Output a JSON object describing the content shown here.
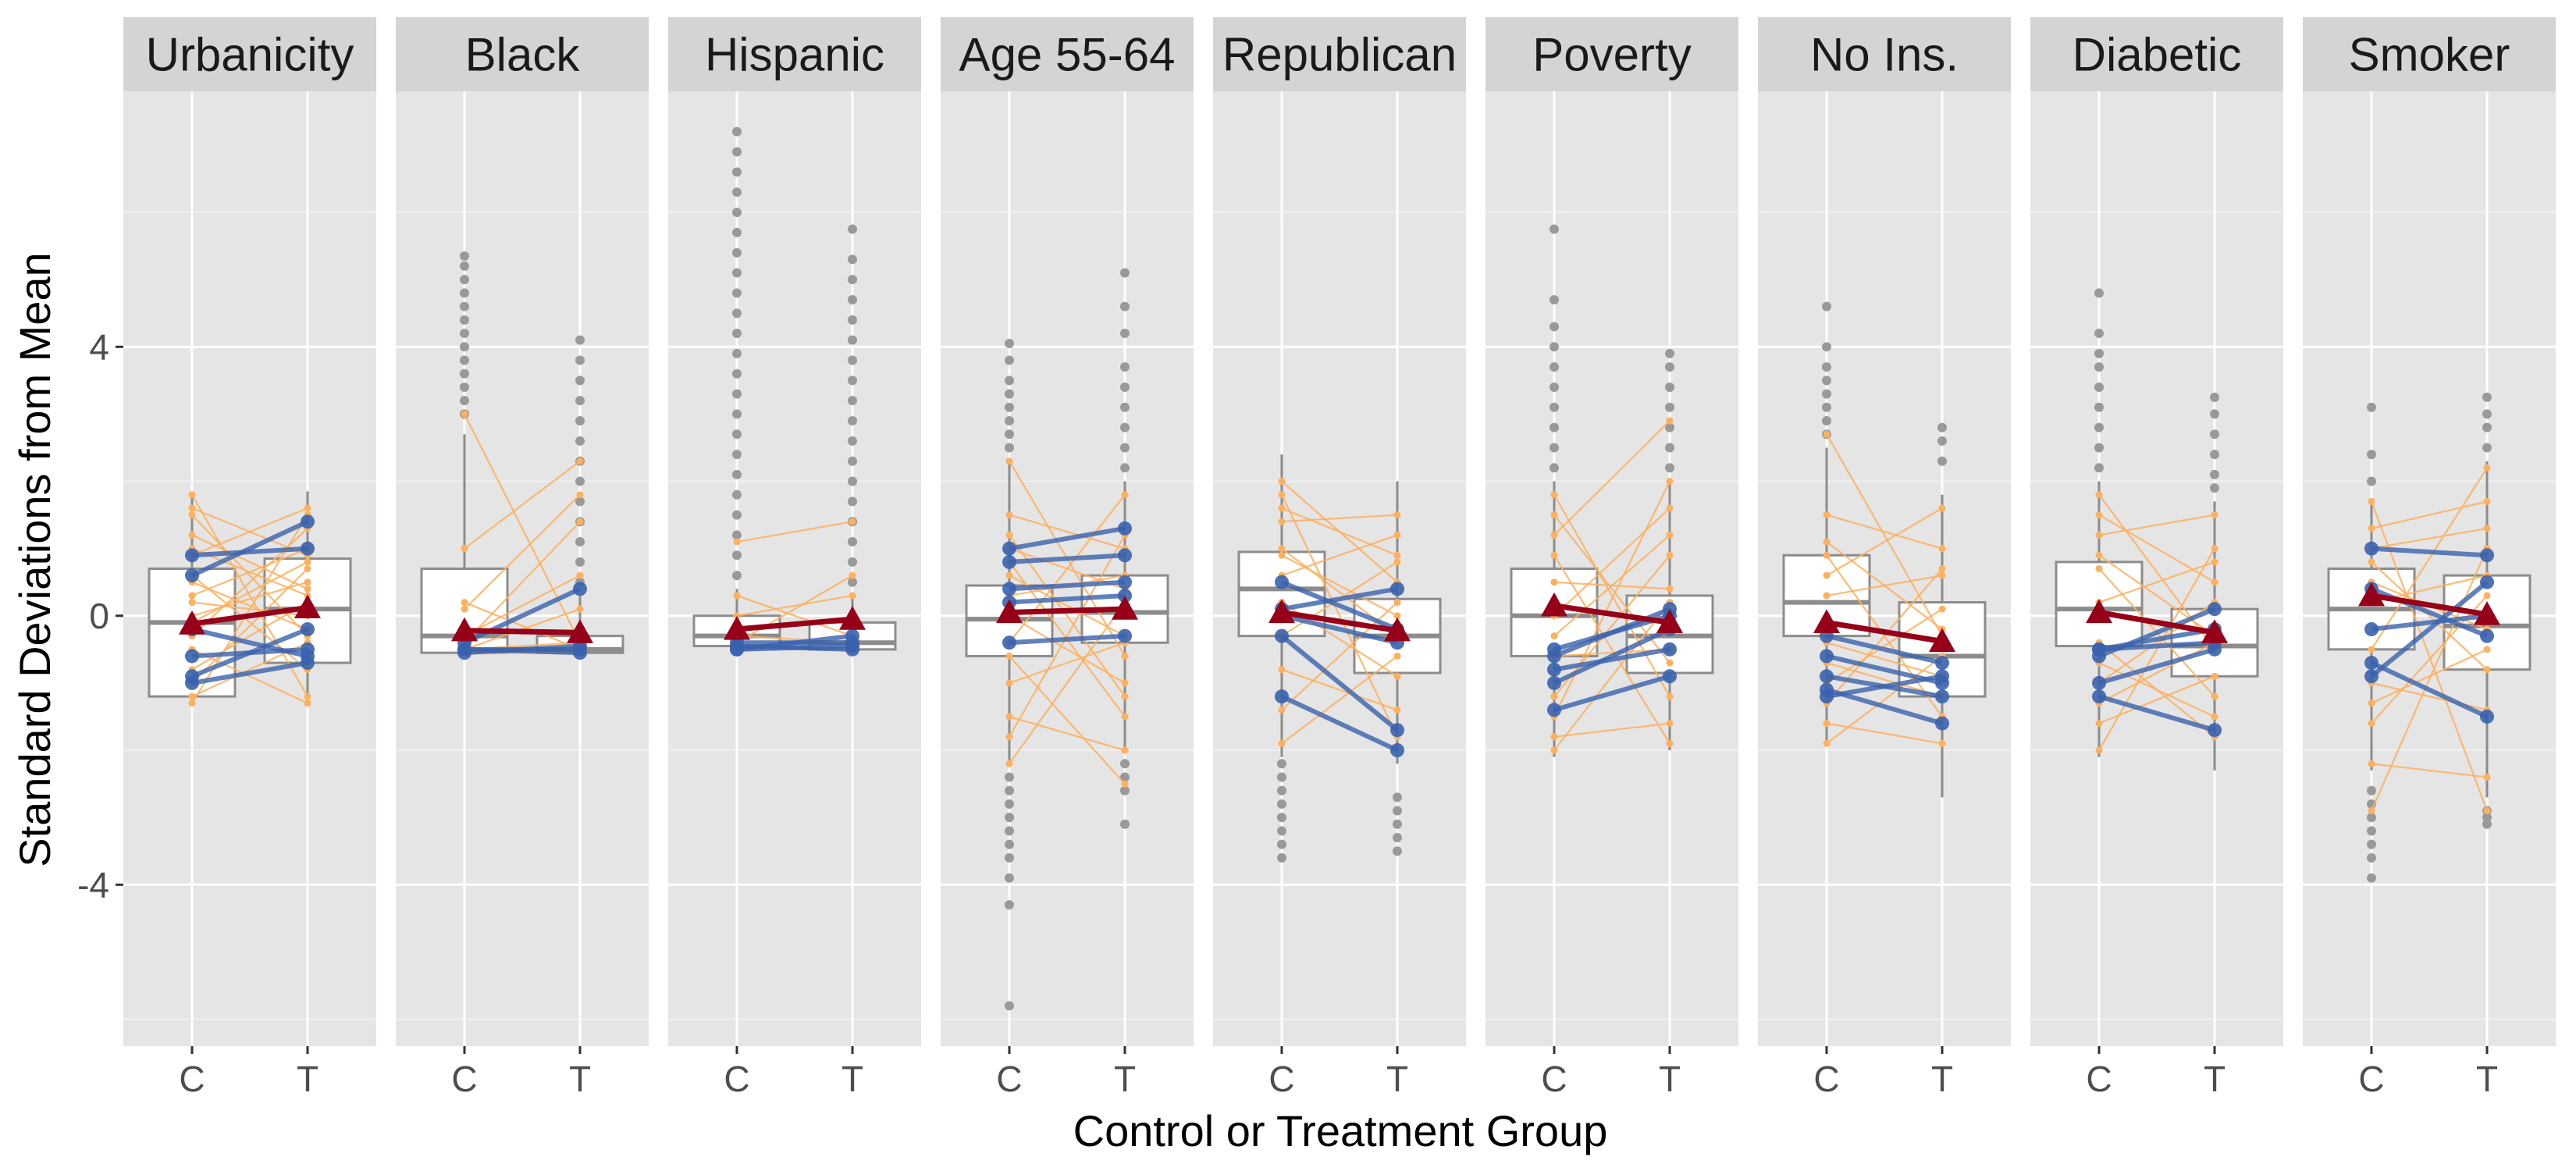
{
  "chart_data": {
    "type": "boxplot-faceted",
    "xlabel": "Control or Treatment Group",
    "ylabel": "Standard Deviations from Mean",
    "groups": [
      "C",
      "T"
    ],
    "yticks": [
      -4,
      0,
      4
    ],
    "ylim": [
      -6.4,
      7.8
    ],
    "colors": {
      "panel_bg": "#e5e5e5",
      "strip_bg": "#d4d4d4",
      "grid": "#ffffff",
      "box_line": "#8c8c8c",
      "outlier": "#999999",
      "pair_line": "#fdb05e",
      "highlight": "#3a62ad",
      "mean": "#960018"
    },
    "facets": [
      {
        "name": "Urbanicity",
        "boxes": [
          {
            "q1": -1.2,
            "median": -0.1,
            "q3": 0.7,
            "wlo": -1.35,
            "whi": 1.8,
            "outliers": []
          },
          {
            "q1": -0.7,
            "median": 0.1,
            "q3": 0.85,
            "wlo": -1.35,
            "whi": 1.85,
            "outliers": []
          }
        ],
        "means": [
          -0.12,
          0.12
        ],
        "pairs": [
          [
            1.8,
            -1.2
          ],
          [
            1.6,
            0.9
          ],
          [
            1.5,
            -0.3
          ],
          [
            1.2,
            0.4
          ],
          [
            0.9,
            1.6
          ],
          [
            0.6,
            -0.8
          ],
          [
            0.3,
            1.0
          ],
          [
            0.0,
            0.5
          ],
          [
            -0.3,
            1.3
          ],
          [
            -0.5,
            -1.3
          ],
          [
            -0.8,
            0.2
          ],
          [
            -1.0,
            0.7
          ],
          [
            -1.2,
            -0.4
          ],
          [
            -1.3,
            1.5
          ],
          [
            0.2,
            0.0
          ],
          [
            1.0,
            0.3
          ],
          [
            -0.1,
            0.8
          ],
          [
            0.5,
            -0.2
          ]
        ],
        "highlight_pairs": [
          [
            0.9,
            1.0
          ],
          [
            0.6,
            1.4
          ],
          [
            -0.6,
            -0.5
          ],
          [
            -0.9,
            -0.2
          ],
          [
            -1.0,
            -0.7
          ],
          [
            -0.2,
            -0.6
          ]
        ]
      },
      {
        "name": "Black",
        "boxes": [
          {
            "q1": -0.55,
            "median": -0.3,
            "q3": 0.7,
            "wlo": -0.6,
            "whi": 2.7,
            "outliers": [
              3.0,
              3.2,
              3.4,
              3.6,
              3.8,
              4.0,
              4.2,
              4.4,
              4.6,
              4.8,
              5.0,
              5.2,
              5.35
            ]
          },
          {
            "q1": -0.55,
            "median": -0.5,
            "q3": -0.3,
            "wlo": -0.6,
            "whi": 0.3,
            "outliers": [
              0.5,
              0.8,
              1.1,
              1.4,
              1.7,
              2.0,
              2.3,
              2.6,
              2.9,
              3.2,
              3.5,
              3.8,
              4.1
            ]
          }
        ],
        "means": [
          -0.22,
          -0.25
        ],
        "pairs": [
          [
            3.0,
            -0.4
          ],
          [
            1.0,
            2.3
          ],
          [
            0.2,
            -0.5
          ],
          [
            -0.4,
            1.4
          ],
          [
            -0.5,
            0.1
          ],
          [
            -0.5,
            -0.4
          ],
          [
            -0.3,
            0.6
          ],
          [
            -0.55,
            -0.55
          ],
          [
            0.1,
            1.8
          ]
        ],
        "highlight_pairs": [
          [
            -0.5,
            -0.5
          ],
          [
            -0.55,
            -0.45
          ],
          [
            -0.4,
            0.4
          ],
          [
            -0.5,
            -0.55
          ]
        ]
      },
      {
        "name": "Hispanic",
        "boxes": [
          {
            "q1": -0.45,
            "median": -0.3,
            "q3": 0.0,
            "wlo": -0.5,
            "whi": 0.4,
            "outliers": [
              0.6,
              0.9,
              1.2,
              1.5,
              1.8,
              2.1,
              2.4,
              2.7,
              3.0,
              3.3,
              3.6,
              3.9,
              4.2,
              4.5,
              4.8,
              5.1,
              5.4,
              5.7,
              6.0,
              6.3,
              6.6,
              6.9,
              7.2
            ]
          },
          {
            "q1": -0.5,
            "median": -0.4,
            "q3": -0.1,
            "wlo": -0.5,
            "whi": 0.3,
            "outliers": [
              0.5,
              0.8,
              1.1,
              1.4,
              1.7,
              2.0,
              2.3,
              2.6,
              2.9,
              3.2,
              3.5,
              3.8,
              4.1,
              4.4,
              4.7,
              5.0,
              5.3,
              5.75
            ]
          }
        ],
        "means": [
          -0.2,
          -0.05
        ],
        "pairs": [
          [
            1.1,
            1.4
          ],
          [
            0.3,
            -0.3
          ],
          [
            -0.4,
            0.6
          ],
          [
            -0.3,
            -0.4
          ],
          [
            0.0,
            0.3
          ],
          [
            -0.45,
            -0.5
          ]
        ],
        "highlight_pairs": [
          [
            -0.5,
            -0.45
          ],
          [
            -0.45,
            -0.5
          ],
          [
            -0.5,
            -0.3
          ],
          [
            -0.4,
            -0.4
          ]
        ]
      },
      {
        "name": "Age 55-64",
        "boxes": [
          {
            "q1": -0.6,
            "median": -0.05,
            "q3": 0.45,
            "wlo": -2.2,
            "whi": 2.3,
            "outliers": [
              -5.8,
              -4.3,
              -3.9,
              -3.6,
              -3.4,
              -3.2,
              -3.0,
              -2.8,
              -2.6,
              -2.4,
              2.5,
              2.7,
              2.9,
              3.1,
              3.3,
              3.5,
              3.8,
              4.05
            ]
          },
          {
            "q1": -0.4,
            "median": 0.05,
            "q3": 0.6,
            "wlo": -2.0,
            "whi": 2.0,
            "outliers": [
              -3.1,
              -2.6,
              -2.4,
              -2.2,
              2.2,
              2.5,
              2.8,
              3.1,
              3.4,
              3.7,
              4.2,
              4.6,
              5.1
            ]
          }
        ],
        "means": [
          0.05,
          0.1
        ],
        "pairs": [
          [
            2.3,
            -0.6
          ],
          [
            1.5,
            1.0
          ],
          [
            0.8,
            -1.5
          ],
          [
            0.3,
            0.6
          ],
          [
            -0.4,
            1.8
          ],
          [
            -1.0,
            -0.4
          ],
          [
            -2.2,
            0.2
          ],
          [
            -1.5,
            -2.0
          ],
          [
            0.0,
            -1.0
          ],
          [
            1.0,
            0.4
          ],
          [
            -0.6,
            -2.5
          ],
          [
            0.6,
            -0.3
          ],
          [
            -1.8,
            1.2
          ],
          [
            1.2,
            -1.2
          ]
        ],
        "highlight_pairs": [
          [
            1.0,
            1.3
          ],
          [
            0.8,
            0.9
          ],
          [
            0.4,
            0.5
          ],
          [
            -0.4,
            -0.3
          ],
          [
            0.2,
            0.3
          ]
        ]
      },
      {
        "name": "Republican",
        "boxes": [
          {
            "q1": -0.3,
            "median": 0.4,
            "q3": 0.95,
            "wlo": -2.1,
            "whi": 2.4,
            "outliers": [
              -3.6,
              -3.4,
              -3.2,
              -3.0,
              -2.8,
              -2.6,
              -2.4,
              -2.2
            ]
          },
          {
            "q1": -0.85,
            "median": -0.3,
            "q3": 0.25,
            "wlo": -2.2,
            "whi": 2.0,
            "outliers": [
              -3.5,
              -3.3,
              -3.1,
              -2.9,
              -2.7
            ]
          }
        ],
        "means": [
          0.05,
          -0.22
        ],
        "pairs": [
          [
            2.0,
            0.5
          ],
          [
            1.8,
            -1.8
          ],
          [
            1.4,
            1.5
          ],
          [
            1.0,
            -0.3
          ],
          [
            0.6,
            1.2
          ],
          [
            0.2,
            -0.9
          ],
          [
            -0.3,
            0.8
          ],
          [
            -0.8,
            -1.4
          ],
          [
            -1.4,
            0.2
          ],
          [
            -1.9,
            -0.6
          ],
          [
            0.9,
            0.0
          ],
          [
            1.6,
            0.9
          ]
        ],
        "highlight_pairs": [
          [
            0.5,
            -0.2
          ],
          [
            0.1,
            0.4
          ],
          [
            -0.3,
            -1.7
          ],
          [
            -1.2,
            -2.0
          ],
          [
            0.0,
            -0.4
          ]
        ]
      },
      {
        "name": "Poverty",
        "boxes": [
          {
            "q1": -0.6,
            "median": 0.0,
            "q3": 0.7,
            "wlo": -2.1,
            "whi": 2.0,
            "outliers": [
              2.2,
              2.5,
              2.8,
              3.1,
              3.4,
              3.7,
              4.0,
              4.3,
              4.7,
              5.75
            ]
          },
          {
            "q1": -0.85,
            "median": -0.3,
            "q3": 0.3,
            "wlo": -2.0,
            "whi": 2.0,
            "outliers": [
              2.2,
              2.5,
              2.8,
              3.1,
              3.4,
              3.7,
              3.9
            ]
          }
        ],
        "means": [
          0.15,
          -0.1
        ],
        "pairs": [
          [
            1.8,
            -1.2
          ],
          [
            1.2,
            2.9
          ],
          [
            0.5,
            0.4
          ],
          [
            0.0,
            1.6
          ],
          [
            -0.6,
            -0.5
          ],
          [
            -1.2,
            0.9
          ],
          [
            -1.8,
            -1.6
          ],
          [
            -2.0,
            0.2
          ],
          [
            0.9,
            -1.9
          ],
          [
            -0.3,
            1.2
          ],
          [
            1.5,
            -0.7
          ],
          [
            -1.5,
            2.0
          ]
        ],
        "highlight_pairs": [
          [
            -0.6,
            0.1
          ],
          [
            -0.8,
            -0.5
          ],
          [
            -1.0,
            -0.2
          ],
          [
            -1.4,
            -0.9
          ],
          [
            -0.5,
            0.0
          ]
        ]
      },
      {
        "name": "No Ins.",
        "boxes": [
          {
            "q1": -0.3,
            "median": 0.2,
            "q3": 0.9,
            "wlo": -1.9,
            "whi": 2.5,
            "outliers": [
              2.7,
              2.9,
              3.1,
              3.3,
              3.5,
              3.7,
              4.0,
              4.6
            ]
          },
          {
            "q1": -1.2,
            "median": -0.6,
            "q3": 0.2,
            "wlo": -2.7,
            "whi": 1.8,
            "outliers": [
              2.3,
              2.6,
              2.8
            ]
          }
        ],
        "means": [
          -0.1,
          -0.38
        ],
        "pairs": [
          [
            2.7,
            -0.3
          ],
          [
            1.5,
            1.0
          ],
          [
            0.9,
            -1.5
          ],
          [
            0.3,
            0.6
          ],
          [
            -0.4,
            -0.9
          ],
          [
            -1.0,
            0.1
          ],
          [
            -1.6,
            -1.9
          ],
          [
            -1.9,
            -0.6
          ],
          [
            0.6,
            1.6
          ],
          [
            -0.7,
            -1.2
          ],
          [
            1.1,
            -0.2
          ],
          [
            -1.3,
            0.7
          ]
        ],
        "highlight_pairs": [
          [
            -0.6,
            -1.0
          ],
          [
            -0.9,
            -1.2
          ],
          [
            -1.1,
            -1.6
          ],
          [
            -1.2,
            -0.9
          ],
          [
            -0.3,
            -0.7
          ]
        ]
      },
      {
        "name": "Diabetic",
        "boxes": [
          {
            "q1": -0.45,
            "median": 0.1,
            "q3": 0.8,
            "wlo": -2.1,
            "whi": 2.0,
            "outliers": [
              2.2,
              2.5,
              2.8,
              3.1,
              3.4,
              3.7,
              3.9,
              4.2,
              4.8
            ]
          },
          {
            "q1": -0.9,
            "median": -0.45,
            "q3": 0.1,
            "wlo": -2.3,
            "whi": 1.7,
            "outliers": [
              1.9,
              2.1,
              2.4,
              2.7,
              3.0,
              3.25
            ]
          }
        ],
        "means": [
          0.05,
          -0.25
        ],
        "pairs": [
          [
            1.8,
            -0.5
          ],
          [
            1.2,
            1.5
          ],
          [
            0.7,
            -1.2
          ],
          [
            0.2,
            0.8
          ],
          [
            -0.4,
            -1.8
          ],
          [
            -1.0,
            0.2
          ],
          [
            -1.6,
            -0.9
          ],
          [
            -2.0,
            1.0
          ],
          [
            0.9,
            -0.3
          ],
          [
            -0.7,
            -1.5
          ],
          [
            1.5,
            0.5
          ],
          [
            -1.3,
            -0.4
          ]
        ],
        "highlight_pairs": [
          [
            -0.5,
            -0.4
          ],
          [
            -0.6,
            0.1
          ],
          [
            -1.0,
            -0.5
          ],
          [
            -1.2,
            -1.7
          ],
          [
            -0.5,
            -0.2
          ]
        ]
      },
      {
        "name": "Smoker",
        "boxes": [
          {
            "q1": -0.5,
            "median": 0.1,
            "q3": 0.7,
            "wlo": -2.3,
            "whi": 1.7,
            "outliers": [
              -3.9,
              -3.6,
              -3.4,
              -3.2,
              -3.0,
              -2.8,
              -2.6,
              2.0,
              2.4,
              3.1
            ]
          },
          {
            "q1": -0.8,
            "median": -0.15,
            "q3": 0.6,
            "wlo": -2.7,
            "whi": 2.3,
            "outliers": [
              -3.1,
              -3.0,
              -2.9,
              2.5,
              2.8,
              3.0,
              3.25
            ]
          }
        ],
        "means": [
          0.3,
          0.02
        ],
        "pairs": [
          [
            1.7,
            -2.9
          ],
          [
            1.3,
            1.7
          ],
          [
            0.8,
            -0.8
          ],
          [
            0.2,
            0.6
          ],
          [
            -0.5,
            2.2
          ],
          [
            -1.0,
            -1.4
          ],
          [
            -1.6,
            0.3
          ],
          [
            -2.2,
            -2.4
          ],
          [
            -2.9,
            1.0
          ],
          [
            0.5,
            -0.2
          ],
          [
            1.0,
            1.3
          ],
          [
            -1.3,
            -0.5
          ]
        ],
        "highlight_pairs": [
          [
            1.0,
            0.9
          ],
          [
            0.4,
            -0.3
          ],
          [
            -0.7,
            -1.5
          ],
          [
            -0.9,
            0.5
          ],
          [
            -0.2,
            0.0
          ]
        ]
      }
    ]
  }
}
